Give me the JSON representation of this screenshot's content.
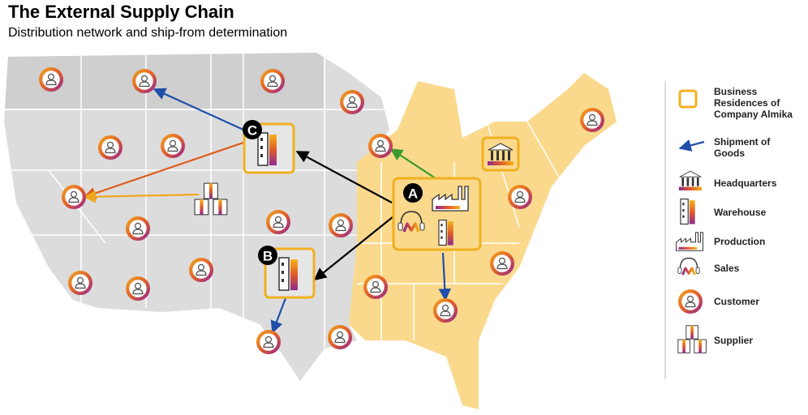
{
  "header": {
    "title": "The External Supply Chain",
    "subtitle": "Distribution network and ship-from determination"
  },
  "markers": [
    "A",
    "B",
    "C"
  ],
  "legend": {
    "items": [
      "Business Residences of Company Almika",
      "Shipment of Goods",
      "Headquarters",
      "Warehouse",
      "Production",
      "Sales",
      "Customer",
      "Supplier"
    ]
  }
}
